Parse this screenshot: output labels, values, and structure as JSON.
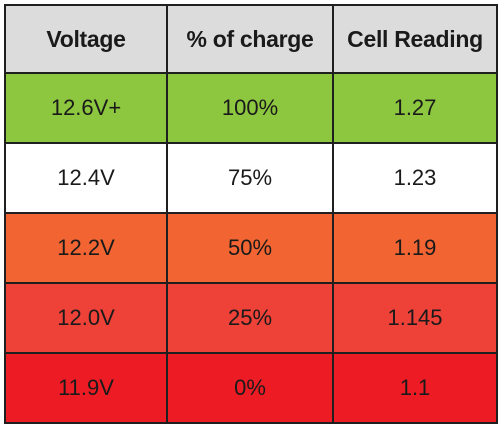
{
  "table": {
    "headers": [
      "Voltage",
      "% of charge",
      "Cell Reading"
    ],
    "rows": [
      {
        "cells": [
          "12.6V+",
          "100%",
          "1.27"
        ],
        "color": "#8dc63f"
      },
      {
        "cells": [
          "12.4V",
          "75%",
          "1.23"
        ],
        "color": "#ffffff"
      },
      {
        "cells": [
          "12.2V",
          "50%",
          "1.19"
        ],
        "color": "#f26532"
      },
      {
        "cells": [
          "12.0V",
          "25%",
          "1.145"
        ],
        "color": "#ee4138"
      },
      {
        "cells": [
          "11.9V",
          "0%",
          "1.1"
        ],
        "color": "#ed1c24"
      }
    ]
  }
}
